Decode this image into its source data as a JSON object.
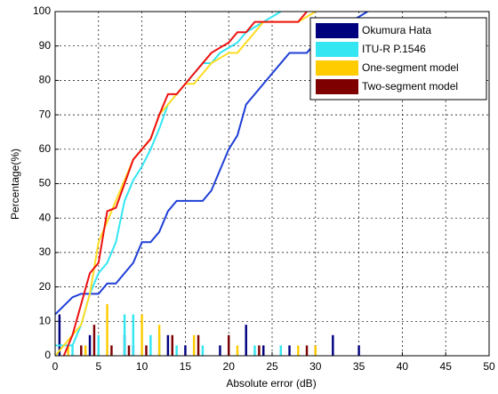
{
  "chart_data": {
    "type": "line",
    "xlabel": "Absolute error (dB)",
    "ylabel": "Percentage(%)",
    "xlim": [
      0,
      50
    ],
    "ylim": [
      0,
      100
    ],
    "xticks": [
      0,
      5,
      10,
      15,
      20,
      25,
      30,
      35,
      40,
      45,
      50
    ],
    "yticks": [
      0,
      10,
      20,
      30,
      40,
      50,
      60,
      70,
      80,
      90,
      100
    ],
    "grid": true,
    "legend": "upper right",
    "series": [
      {
        "name": "Okumura Hata",
        "color": "#00007f",
        "line_color": "#1f3fd6",
        "x": [
          0,
          2,
          3,
          5,
          6,
          7,
          8,
          9,
          10,
          11,
          12,
          13,
          14,
          17,
          18,
          19,
          20,
          21,
          22,
          23,
          24,
          25,
          26,
          27,
          29,
          30,
          32,
          34,
          36
        ],
        "values": [
          12,
          17,
          18,
          18,
          21,
          21,
          24,
          27,
          33,
          33,
          36,
          42,
          45,
          45,
          48,
          54,
          60,
          64,
          73,
          76,
          79,
          82,
          85,
          88,
          88,
          91,
          94,
          97,
          100
        ],
        "bar_x": [
          0.5,
          4,
          8,
          9,
          13,
          15,
          19,
          22,
          24,
          27,
          30,
          32,
          35
        ],
        "bar_values": [
          12,
          6,
          6,
          3,
          6,
          3,
          3,
          9,
          3,
          3,
          3,
          6,
          3
        ]
      },
      {
        "name": "ITU-R P.1546",
        "color": "#33e6f2",
        "line_color": "#33e6f2",
        "x": [
          0,
          2,
          3,
          4,
          5,
          6,
          7,
          8,
          9,
          10,
          11,
          12,
          13,
          14,
          15,
          16,
          17,
          18,
          19,
          21,
          22,
          24,
          26
        ],
        "values": [
          3,
          3,
          9,
          18,
          24,
          27,
          33,
          45,
          51,
          55,
          60,
          66,
          73,
          76,
          79,
          82,
          85,
          85,
          88,
          91,
          94,
          97,
          100
        ],
        "bar_x": [
          2,
          5,
          8,
          9,
          11,
          12,
          14,
          17,
          20,
          23,
          26
        ],
        "bar_values": [
          3,
          6,
          12,
          12,
          6,
          6,
          3,
          3,
          6,
          3,
          3
        ]
      },
      {
        "name": "One-segment model",
        "color": "#ffcc00",
        "line_color": "#ffdd22",
        "x": [
          0,
          1,
          3,
          4,
          5,
          6,
          7,
          8,
          9,
          10,
          11,
          12,
          13,
          14,
          15,
          16,
          17,
          18,
          20,
          21,
          22,
          23,
          24,
          28,
          30
        ],
        "values": [
          0,
          3,
          9,
          18,
          33,
          39,
          45,
          51,
          57,
          60,
          63,
          70,
          73,
          76,
          79,
          79,
          82,
          85,
          88,
          88,
          91,
          94,
          97,
          97,
          100
        ],
        "bar_x": [
          1.5,
          3.5,
          6,
          10,
          12,
          16,
          21,
          28,
          30
        ],
        "bar_values": [
          3,
          3,
          15,
          12,
          9,
          6,
          3,
          3,
          3
        ]
      },
      {
        "name": "Two-segment model",
        "color": "#7f0000",
        "line_color": "#ee1111",
        "x": [
          1,
          2,
          3,
          4,
          5,
          6,
          7,
          8,
          9,
          10,
          11,
          12,
          13,
          14,
          15,
          16,
          17,
          18,
          20,
          21,
          22,
          23,
          28,
          29
        ],
        "values": [
          0,
          6,
          15,
          24,
          27,
          42,
          43,
          50,
          57,
          60,
          63,
          70,
          76,
          76,
          79,
          82,
          85,
          88,
          91,
          94,
          94,
          97,
          97,
          100
        ],
        "bar_x": [
          3,
          4.5,
          6.5,
          8.5,
          10.5,
          13.5,
          16.5,
          20,
          23.5,
          29
        ],
        "bar_values": [
          3,
          9,
          3,
          3,
          3,
          6,
          6,
          6,
          3,
          3
        ]
      }
    ]
  }
}
